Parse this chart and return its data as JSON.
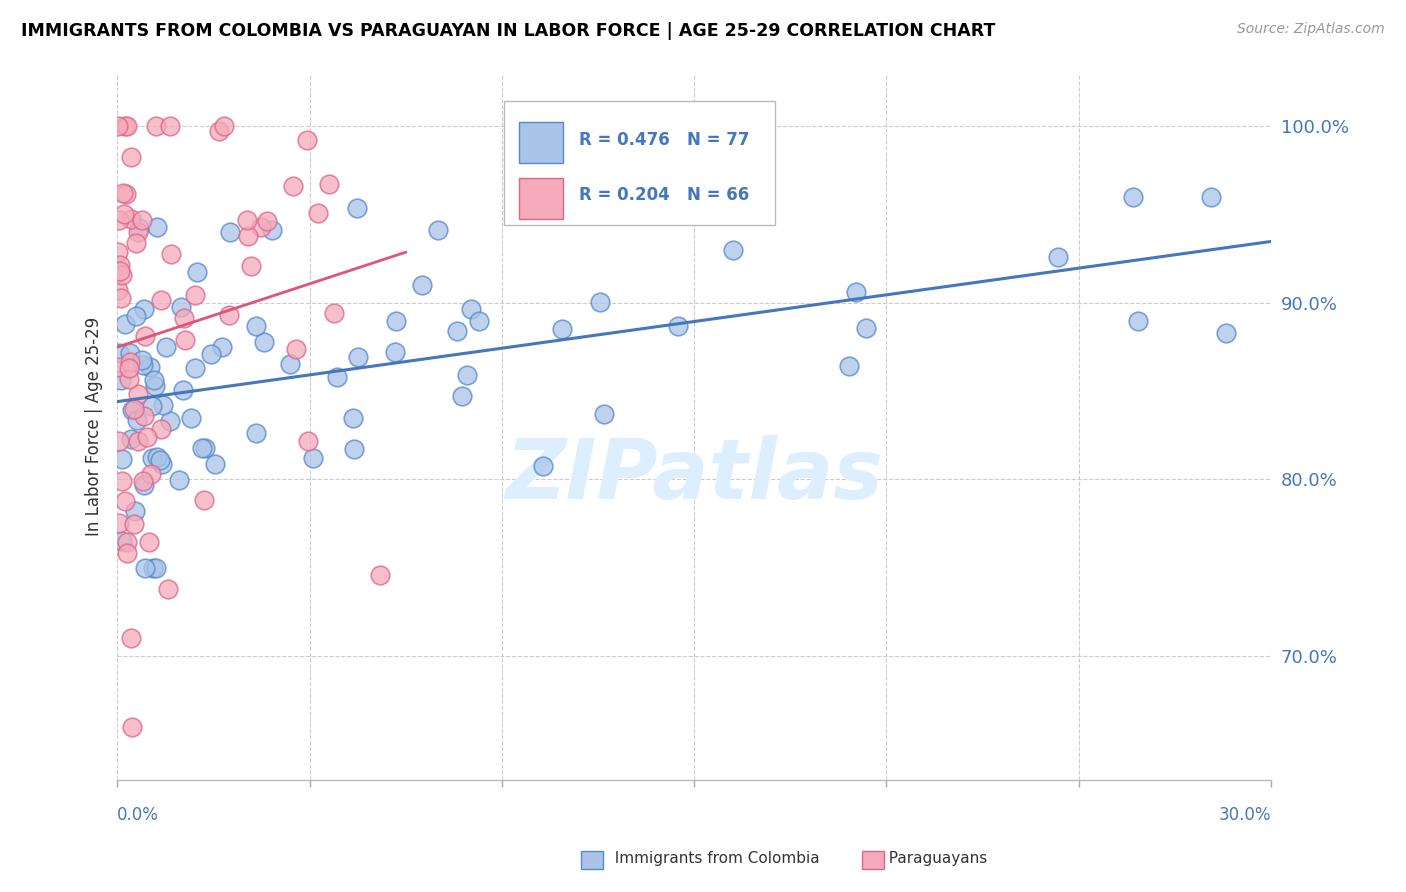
{
  "title": "IMMIGRANTS FROM COLOMBIA VS PARAGUAYAN IN LABOR FORCE | AGE 25-29 CORRELATION CHART",
  "source": "Source: ZipAtlas.com",
  "ylabel": "In Labor Force | Age 25-29",
  "xlim": [
    0.0,
    30.0
  ],
  "ylim": [
    63.0,
    103.0
  ],
  "yticks": [
    70.0,
    80.0,
    90.0,
    100.0
  ],
  "ytick_labels": [
    "70.0%",
    "80.0%",
    "90.0%",
    "100.0%"
  ],
  "colombia_R": 0.476,
  "colombia_N": 77,
  "paraguay_R": 0.204,
  "paraguay_N": 66,
  "colombia_color": "#aac4e8",
  "colombia_edge": "#5588cc",
  "paraguay_color": "#f5aabb",
  "paraguay_edge": "#dd6688",
  "trendline_colombia_color": "#4477bb",
  "trendline_paraguay_color": "#dd5577",
  "watermark_color": "#ddeeff",
  "background_color": "#ffffff"
}
